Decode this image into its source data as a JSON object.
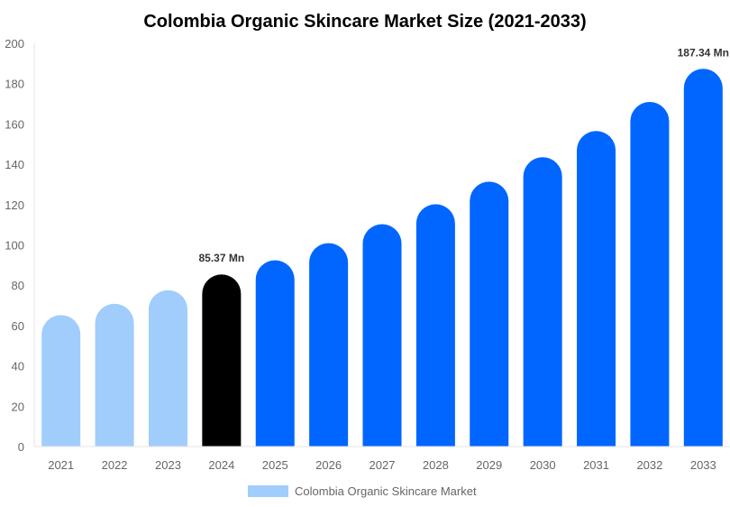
{
  "chart_data": {
    "type": "bar",
    "title": "Colombia Organic Skincare Market Size (2021-2033)",
    "xlabel": "",
    "ylabel": "",
    "categories": [
      "2021",
      "2022",
      "2023",
      "2024",
      "2025",
      "2026",
      "2027",
      "2028",
      "2029",
      "2030",
      "2031",
      "2032",
      "2033"
    ],
    "series": [
      {
        "name": "Colombia Organic Skincare Market",
        "values": [
          65.2,
          70.8,
          77.6,
          85.37,
          92.4,
          100.9,
          110.3,
          120.2,
          131.4,
          143.5,
          156.5,
          170.9,
          187.34
        ]
      }
    ],
    "bar_colors": [
      "#a0cdfc",
      "#a0cdfc",
      "#a0cdfc",
      "#000000",
      "#0066ff",
      "#0066ff",
      "#0066ff",
      "#0066ff",
      "#0066ff",
      "#0066ff",
      "#0066ff",
      "#0066ff",
      "#0066ff"
    ],
    "data_labels": [
      {
        "category": "2024",
        "text": "85.37 Mn"
      },
      {
        "category": "2033",
        "text": "187.34 Mn"
      }
    ],
    "ylim": [
      0,
      200
    ],
    "yticks": [
      0,
      20,
      40,
      60,
      80,
      100,
      120,
      140,
      160,
      180,
      200
    ],
    "grid": false,
    "legend": {
      "position": "bottom",
      "entries": [
        "Colombia Organic Skincare Market"
      ],
      "color": "#a0cdfc"
    }
  }
}
